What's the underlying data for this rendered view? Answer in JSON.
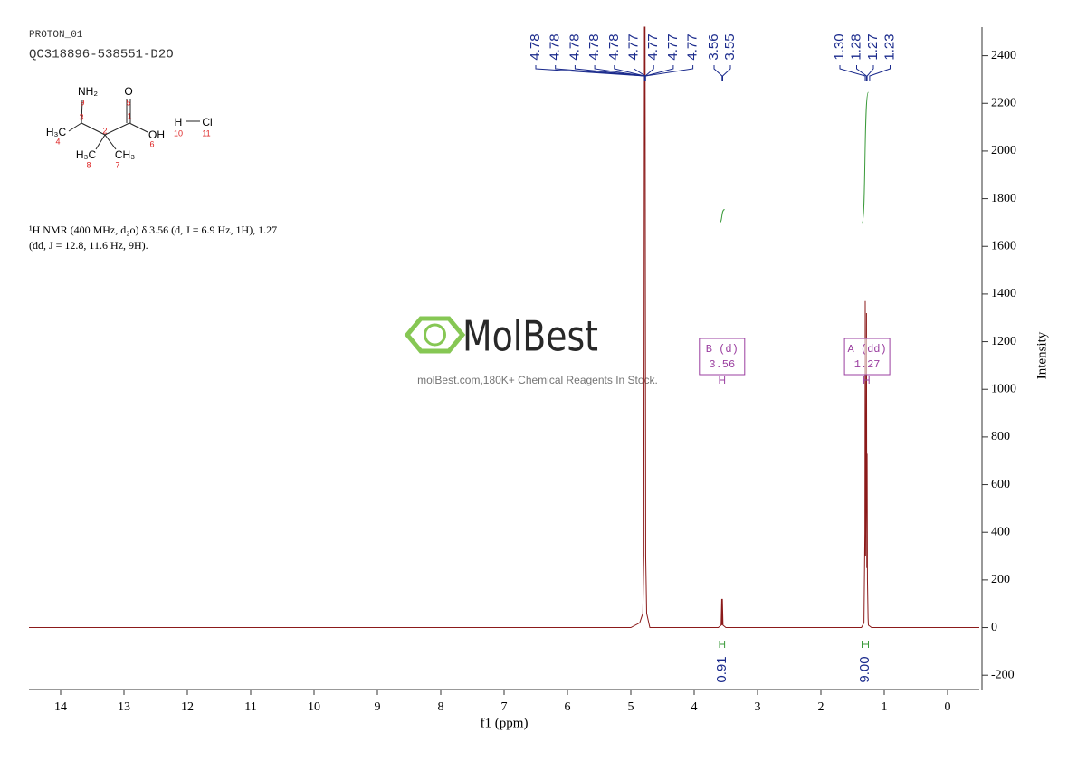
{
  "header": {
    "experiment": "PROTON_01",
    "sample": "QC318896-538551-D2O"
  },
  "description": [
    "¹H NMR (400 MHz, d₂o) δ 3.56 (d, J = 6.9 Hz, 1H), 1.27",
    "(dd, J = 12.8, 11.6 Hz, 9H)."
  ],
  "structure": {
    "atoms": [
      "NH₂",
      "O",
      "H₃C",
      "OH",
      "H₃C",
      "CH₃",
      "H",
      "Cl"
    ],
    "numbers": [
      9,
      5,
      3,
      1,
      2,
      4,
      6,
      8,
      7,
      10,
      11
    ]
  },
  "watermark": {
    "brand": "MolBest",
    "tagline": "molBest.com,180K+ Chemical Reagents In Stock."
  },
  "chart_data": {
    "type": "line",
    "xlabel": "f1 (ppm)",
    "ylabel": "Intensity",
    "color": "#8b1a1a",
    "x": [
      14.5,
      5.0,
      4.86,
      4.81,
      4.795,
      4.785,
      4.78,
      4.775,
      4.765,
      4.75,
      4.7,
      3.62,
      3.575,
      3.565,
      3.56,
      3.555,
      3.545,
      3.5,
      1.36,
      1.32,
      1.305,
      1.3,
      1.295,
      1.285,
      1.28,
      1.275,
      1.27,
      1.265,
      1.255,
      1.25,
      1.2,
      -0.5
    ],
    "values": [
      0,
      0,
      20,
      60,
      300,
      2520,
      2520,
      2520,
      300,
      60,
      0,
      0,
      10,
      120,
      10,
      120,
      10,
      0,
      0,
      20,
      400,
      1370,
      300,
      700,
      1320,
      250,
      730,
      200,
      40,
      10,
      0,
      0
    ],
    "xlim": [
      14.5,
      -0.5
    ],
    "ylim": [
      -260,
      2520
    ],
    "xticks": [
      14,
      13,
      12,
      11,
      10,
      9,
      8,
      7,
      6,
      5,
      4,
      3,
      2,
      1,
      0
    ],
    "yticks": [
      -200,
      0,
      200,
      400,
      600,
      800,
      1000,
      1200,
      1400,
      1600,
      1800,
      2000,
      2200,
      2400
    ],
    "peaks": {
      "values": [
        4.78,
        4.78,
        4.78,
        4.78,
        4.78,
        4.77,
        4.77,
        4.77,
        4.77,
        3.56,
        3.55,
        1.3,
        1.28,
        1.27,
        1.23
      ],
      "value_labels": [
        "4.78",
        "4.78",
        "4.78",
        "4.78",
        "4.78",
        "4.77",
        "4.77",
        "4.77",
        "4.77",
        "3.56",
        "3.55",
        "1.30",
        "1.28",
        "1.27",
        "1.23"
      ],
      "color": "#1a2a8c"
    },
    "integrals": {
      "ranges": [
        [
          3.6,
          3.52
        ],
        [
          1.35,
          1.25
        ]
      ],
      "values": [
        0.91,
        9
      ],
      "value_labels": [
        "0.91",
        "9.00"
      ],
      "color": "#3a9a3a"
    },
    "multiplets": {
      "names": [
        "B (d)",
        "A (dd)"
      ],
      "shifts": [
        3.56,
        1.27
      ],
      "ranges": [
        [
          3.6,
          3.52
        ],
        [
          1.32,
          1.24
        ]
      ],
      "color": "#9b3fa0"
    }
  }
}
